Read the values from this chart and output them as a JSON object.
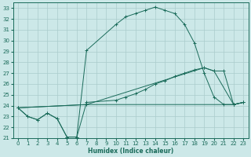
{
  "xlabel": "Humidex (Indice chaleur)",
  "bg_color": "#cce8e8",
  "grid_color": "#aacccc",
  "line_color": "#1a6b5a",
  "xlim": [
    -0.5,
    23.5
  ],
  "ylim": [
    21.0,
    33.5
  ],
  "xticks": [
    0,
    1,
    2,
    3,
    4,
    5,
    6,
    7,
    8,
    9,
    10,
    11,
    12,
    13,
    14,
    15,
    16,
    17,
    18,
    19,
    20,
    21,
    22,
    23
  ],
  "yticks": [
    21,
    22,
    23,
    24,
    25,
    26,
    27,
    28,
    29,
    30,
    31,
    32,
    33
  ],
  "series1_x": [
    0,
    1,
    2,
    3,
    4,
    5,
    6,
    7,
    10,
    11,
    12,
    13,
    14,
    15,
    16,
    17,
    18,
    19,
    20,
    21,
    22,
    23
  ],
  "series1_y": [
    23.8,
    23.0,
    22.7,
    23.3,
    22.8,
    21.1,
    21.1,
    29.1,
    31.5,
    32.2,
    32.5,
    32.8,
    33.1,
    32.8,
    32.5,
    31.5,
    29.8,
    27.0,
    24.8,
    24.1,
    24.1,
    24.3
  ],
  "series2_x": [
    0,
    1,
    2,
    3,
    4,
    5,
    6,
    7,
    10,
    11,
    12,
    13,
    14,
    15,
    16,
    17,
    18,
    19,
    20,
    21,
    22,
    23
  ],
  "series2_y": [
    23.8,
    23.0,
    22.7,
    23.3,
    22.8,
    21.1,
    21.1,
    24.3,
    24.5,
    24.8,
    25.1,
    25.5,
    26.0,
    26.3,
    26.7,
    27.0,
    27.3,
    27.5,
    27.2,
    27.2,
    24.1,
    24.3
  ],
  "series3_x": [
    0,
    7,
    22,
    23
  ],
  "series3_y": [
    23.8,
    24.1,
    24.1,
    24.3
  ],
  "series4_x": [
    0,
    7,
    19,
    20,
    22,
    23
  ],
  "series4_y": [
    23.8,
    24.1,
    27.5,
    27.2,
    24.1,
    24.3
  ]
}
